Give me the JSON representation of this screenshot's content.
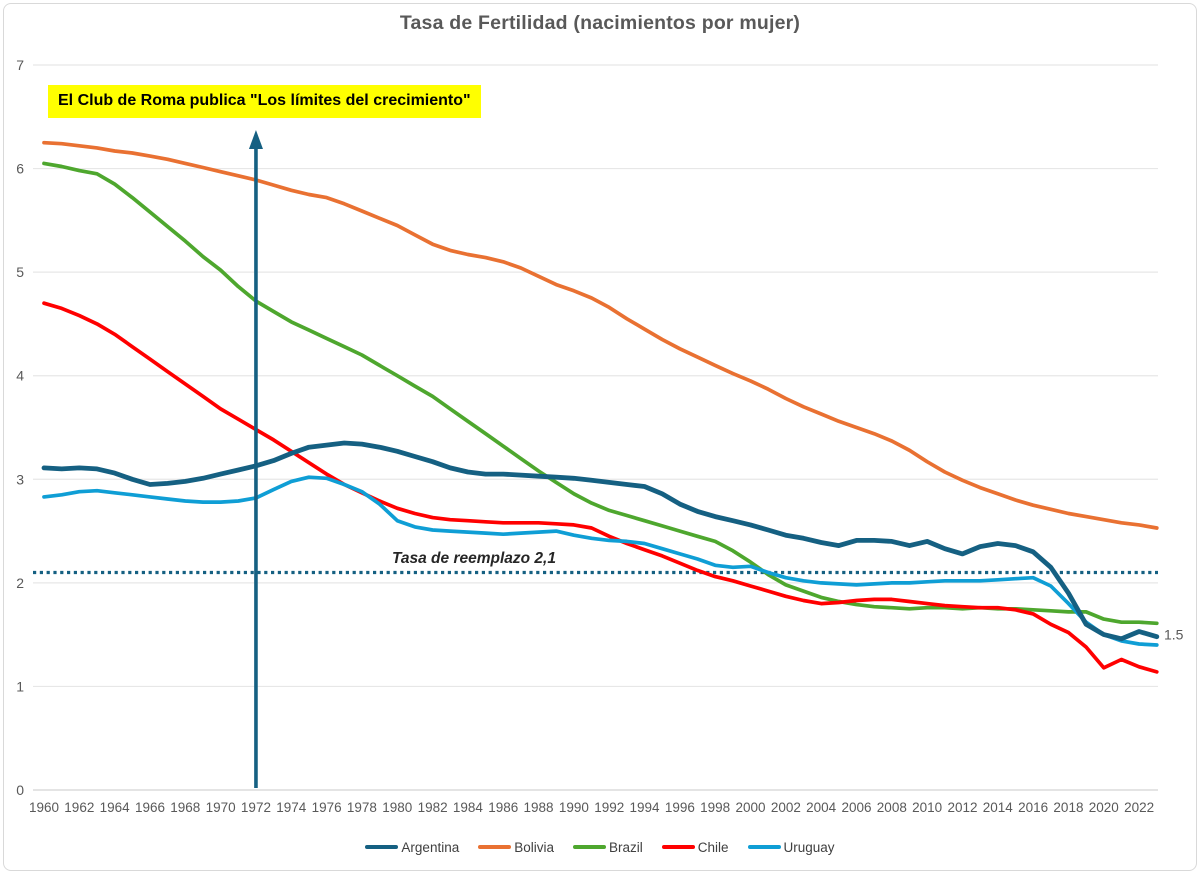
{
  "title": "Tasa de Fertilidad (nacimientos por mujer)",
  "annotation": {
    "text": "El Club de Roma publica \"Los límites del crecimiento\"",
    "bg_color": "#FFFF00",
    "text_color": "#000000",
    "arrow_year": 1972,
    "arrow_color": "#156082"
  },
  "replacement_line": {
    "label": "Tasa de reemplazo 2,1",
    "value": 2.1,
    "color": "#156082",
    "style": "dotted"
  },
  "end_label": {
    "text": "1.5",
    "value": 1.5,
    "series": "Argentina"
  },
  "axis": {
    "tick_color": "#595959",
    "grid_color": "#E7E7E7",
    "baseline_color": "#D3D3D3"
  },
  "chart_data": {
    "type": "line",
    "title": "Tasa de Fertilidad (nacimientos por mujer)",
    "xlabel": "",
    "ylabel": "",
    "ylim": [
      0,
      7
    ],
    "y_ticks": [
      0,
      1,
      2,
      3,
      4,
      5,
      6,
      7
    ],
    "x_range": [
      1960,
      2023
    ],
    "x_ticks": [
      1960,
      1962,
      1964,
      1966,
      1968,
      1970,
      1972,
      1974,
      1976,
      1978,
      1980,
      1982,
      1984,
      1986,
      1988,
      1990,
      1992,
      1994,
      1996,
      1998,
      2000,
      2002,
      2004,
      2006,
      2008,
      2010,
      2012,
      2014,
      2016,
      2018,
      2020,
      2022
    ],
    "grid": "horizontal",
    "legend_position": "bottom",
    "series": [
      {
        "name": "Argentina",
        "color": "#156082",
        "values": [
          3.11,
          3.1,
          3.11,
          3.1,
          3.06,
          3.0,
          2.95,
          2.96,
          2.98,
          3.01,
          3.05,
          3.09,
          3.13,
          3.18,
          3.25,
          3.31,
          3.33,
          3.35,
          3.34,
          3.31,
          3.27,
          3.22,
          3.17,
          3.11,
          3.07,
          3.05,
          3.05,
          3.04,
          3.03,
          3.02,
          3.01,
          2.99,
          2.97,
          2.95,
          2.93,
          2.86,
          2.76,
          2.69,
          2.64,
          2.6,
          2.56,
          2.51,
          2.46,
          2.43,
          2.39,
          2.36,
          2.41,
          2.41,
          2.4,
          2.36,
          2.4,
          2.33,
          2.28,
          2.35,
          2.38,
          2.36,
          2.3,
          2.15,
          1.9,
          1.6,
          1.5,
          1.46,
          1.53,
          1.48
        ]
      },
      {
        "name": "Bolivia",
        "color": "#E97132",
        "values": [
          6.25,
          6.24,
          6.22,
          6.2,
          6.17,
          6.15,
          6.12,
          6.09,
          6.05,
          6.01,
          5.97,
          5.93,
          5.89,
          5.84,
          5.79,
          5.75,
          5.72,
          5.66,
          5.59,
          5.52,
          5.45,
          5.36,
          5.27,
          5.21,
          5.17,
          5.14,
          5.1,
          5.04,
          4.96,
          4.88,
          4.82,
          4.75,
          4.66,
          4.55,
          4.45,
          4.35,
          4.26,
          4.18,
          4.1,
          4.02,
          3.95,
          3.87,
          3.78,
          3.7,
          3.63,
          3.56,
          3.5,
          3.44,
          3.37,
          3.28,
          3.17,
          3.07,
          2.99,
          2.92,
          2.86,
          2.8,
          2.75,
          2.71,
          2.67,
          2.64,
          2.61,
          2.58,
          2.56,
          2.53
        ]
      },
      {
        "name": "Brazil",
        "color": "#4EA72E",
        "values": [
          6.05,
          6.02,
          5.98,
          5.95,
          5.85,
          5.72,
          5.58,
          5.44,
          5.3,
          5.15,
          5.02,
          4.86,
          4.72,
          4.62,
          4.52,
          4.44,
          4.36,
          4.28,
          4.2,
          4.1,
          4.0,
          3.9,
          3.8,
          3.68,
          3.56,
          3.44,
          3.32,
          3.2,
          3.08,
          2.97,
          2.86,
          2.77,
          2.7,
          2.65,
          2.6,
          2.55,
          2.5,
          2.45,
          2.4,
          2.31,
          2.2,
          2.08,
          1.98,
          1.92,
          1.86,
          1.82,
          1.79,
          1.77,
          1.76,
          1.75,
          1.76,
          1.76,
          1.75,
          1.76,
          1.75,
          1.75,
          1.74,
          1.73,
          1.72,
          1.72,
          1.65,
          1.62,
          1.62,
          1.61
        ]
      },
      {
        "name": "Chile",
        "color": "#FF0000",
        "values": [
          4.7,
          4.65,
          4.58,
          4.5,
          4.4,
          4.28,
          4.16,
          4.04,
          3.92,
          3.8,
          3.68,
          3.58,
          3.48,
          3.38,
          3.27,
          3.16,
          3.05,
          2.95,
          2.87,
          2.79,
          2.72,
          2.67,
          2.63,
          2.61,
          2.6,
          2.59,
          2.58,
          2.58,
          2.58,
          2.57,
          2.56,
          2.53,
          2.45,
          2.38,
          2.32,
          2.26,
          2.19,
          2.12,
          2.06,
          2.02,
          1.97,
          1.92,
          1.87,
          1.83,
          1.8,
          1.81,
          1.83,
          1.84,
          1.84,
          1.82,
          1.8,
          1.78,
          1.77,
          1.76,
          1.76,
          1.74,
          1.7,
          1.6,
          1.52,
          1.38,
          1.18,
          1.26,
          1.19,
          1.14
        ]
      },
      {
        "name": "Uruguay",
        "color": "#0F9ED5",
        "values": [
          2.83,
          2.85,
          2.88,
          2.89,
          2.87,
          2.85,
          2.83,
          2.81,
          2.79,
          2.78,
          2.78,
          2.79,
          2.82,
          2.9,
          2.98,
          3.02,
          3.01,
          2.95,
          2.88,
          2.76,
          2.6,
          2.54,
          2.51,
          2.5,
          2.49,
          2.48,
          2.47,
          2.48,
          2.49,
          2.5,
          2.46,
          2.43,
          2.41,
          2.4,
          2.38,
          2.33,
          2.28,
          2.23,
          2.17,
          2.15,
          2.16,
          2.1,
          2.05,
          2.02,
          2.0,
          1.99,
          1.98,
          1.99,
          2.0,
          2.0,
          2.01,
          2.02,
          2.02,
          2.02,
          2.03,
          2.04,
          2.05,
          1.97,
          1.8,
          1.62,
          1.5,
          1.44,
          1.41,
          1.4
        ]
      }
    ]
  }
}
